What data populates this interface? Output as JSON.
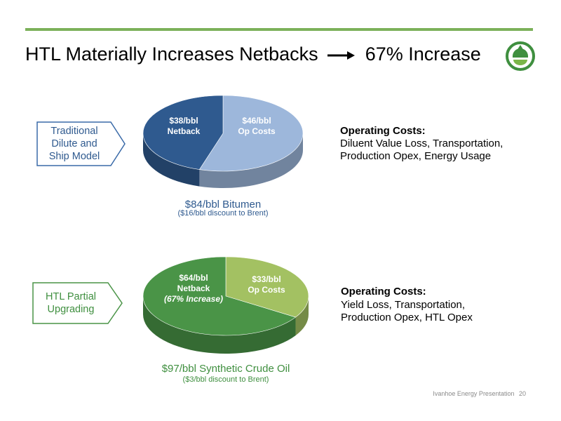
{
  "slide": {
    "title_left": "HTL Materially Increases Netbacks",
    "title_right": "67% Increase",
    "footer_text": "Ivanhoe Energy Presentation",
    "page_number": "20",
    "accent_color": "#6aa84f"
  },
  "chart_data": [
    {
      "type": "pie",
      "model_label": [
        "Traditional",
        "Dilute and",
        "Ship Model"
      ],
      "caption": "$84/bbl Bitumen",
      "subcaption": "($16/bbl discount to Brent)",
      "total": 84,
      "slices": [
        {
          "lines": [
            "$46/bbl",
            "Op Costs"
          ],
          "value": 46,
          "color": "#9db7db"
        },
        {
          "lines": [
            "$38/bbl",
            "Netback"
          ],
          "value": 38,
          "color": "#2f5a8f"
        }
      ],
      "costs_heading": "Operating Costs:",
      "costs_lines": [
        "Diluent Value Loss, Transportation,",
        "Production Opex, Energy Usage"
      ]
    },
    {
      "type": "pie",
      "model_label": [
        "HTL Partial",
        "Upgrading"
      ],
      "caption": "$97/bbl Synthetic Crude Oil",
      "subcaption": "($3/bbl discount to Brent)",
      "total": 97,
      "slices": [
        {
          "lines": [
            "$33/bbl",
            "Op Costs"
          ],
          "value": 33,
          "color": "#a3c162"
        },
        {
          "lines": [
            "$64/bbl",
            "Netback",
            "(67% Increase)"
          ],
          "value": 64,
          "color": "#4a9447"
        }
      ],
      "costs_heading": "Operating Costs:",
      "costs_lines": [
        "Yield Loss, Transportation,",
        "Production Opex, HTL Opex"
      ]
    }
  ]
}
